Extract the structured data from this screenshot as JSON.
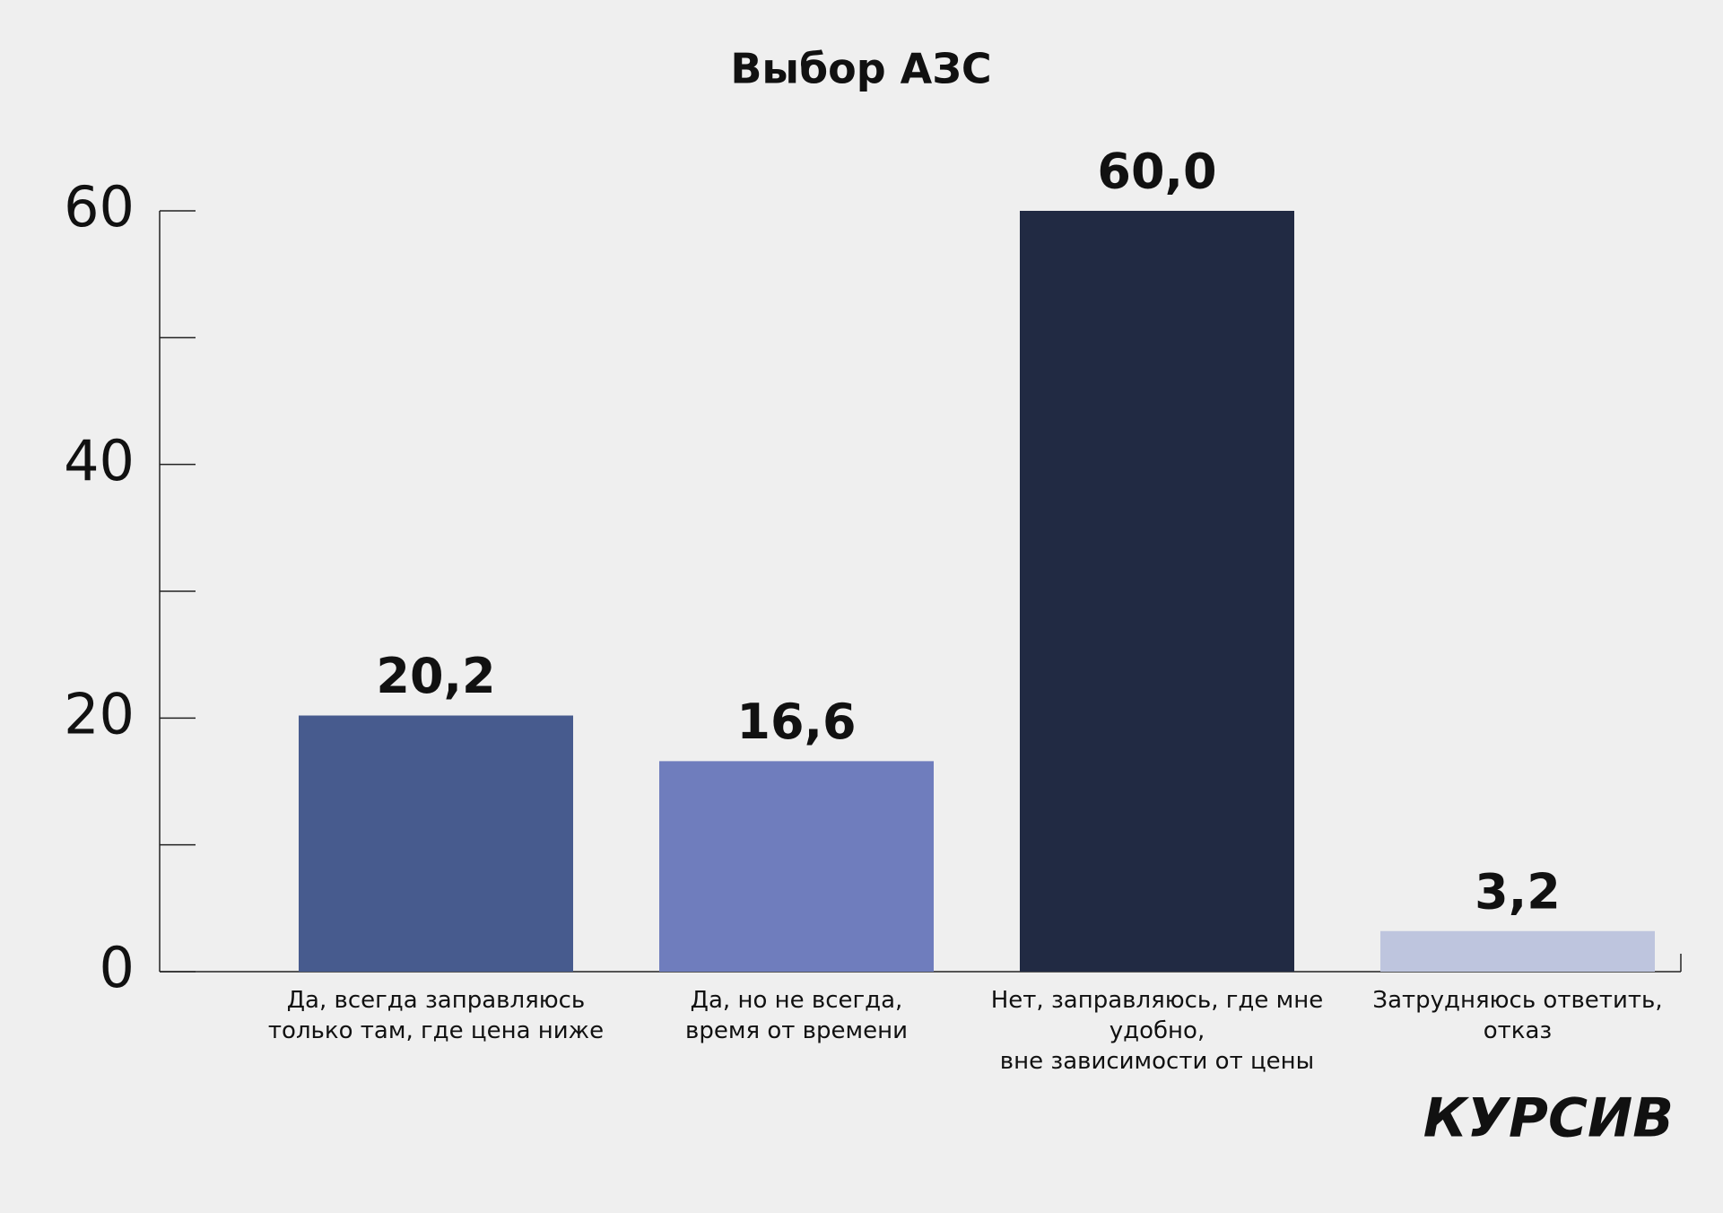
{
  "chart_data": {
    "type": "bar",
    "title": "Выбор АЗС",
    "categories": [
      "Да, всегда заправляюсь\nтолько там, где цена ниже",
      "Да, но не всегда,\nвремя от времени",
      "Нет, заправляюсь, где мне удобно,\nвне зависимости от цены",
      "Затрудняюсь ответить,\nотказ"
    ],
    "values": [
      20.2,
      16.6,
      60.0,
      3.2
    ],
    "value_labels": [
      "20,2",
      "16,6",
      "60,0",
      "3,2"
    ],
    "colors": [
      "#475b8e",
      "#6f7dbd",
      "#212a43",
      "#bec5de"
    ],
    "ylim": [
      0,
      60
    ],
    "yticks": [
      0,
      20,
      40,
      60
    ],
    "minor_yticks": [
      10,
      30,
      50
    ]
  },
  "logo": "КУРСИВ"
}
